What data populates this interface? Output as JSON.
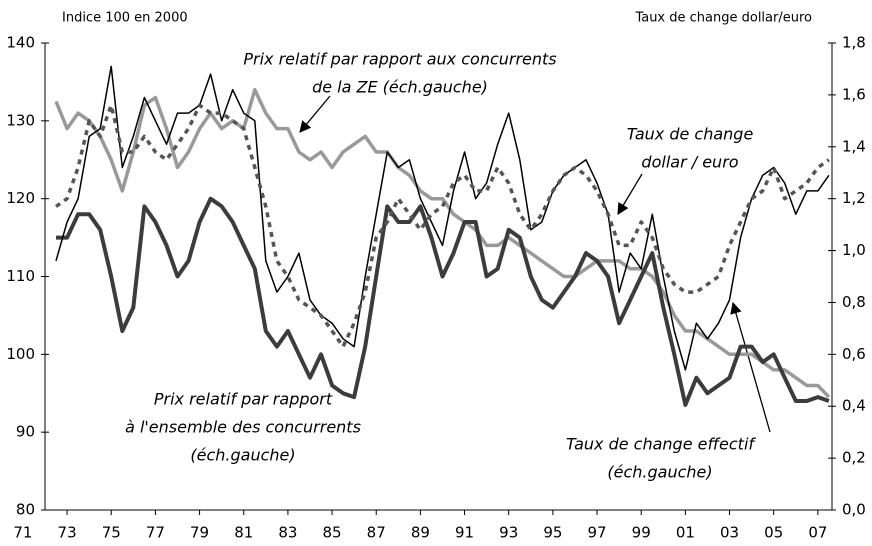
{
  "chart_data": {
    "type": "line",
    "axis_title_left": "Indice 100 en 2000",
    "axis_title_right": "Taux de change dollar/euro",
    "annotations": [
      [
        "Prix relatif par rapport aux concurrents",
        "de la ZE (éch.gauche)"
      ],
      [
        "Taux de change",
        "dollar / euro"
      ],
      [
        "Prix relatif par rapport",
        "à l'ensemble des concurrents",
        "(éch.gauche)"
      ],
      [
        "Taux de change effectif",
        "(éch.gauche)"
      ]
    ],
    "x": [
      1972.5,
      1973,
      1973.5,
      1974,
      1974.5,
      1975,
      1975.5,
      1976,
      1976.5,
      1977,
      1977.5,
      1978,
      1978.5,
      1979,
      1979.5,
      1980,
      1980.5,
      1981,
      1981.5,
      1982,
      1982.5,
      1983,
      1983.5,
      1984,
      1984.5,
      1985,
      1985.5,
      1986,
      1986.5,
      1987,
      1987.5,
      1988,
      1988.5,
      1989,
      1989.5,
      1990,
      1990.5,
      1991,
      1991.5,
      1992,
      1992.5,
      1993,
      1993.5,
      1994,
      1994.5,
      1995,
      1995.5,
      1996,
      1996.5,
      1997,
      1997.5,
      1998,
      1998.5,
      1999,
      1999.5,
      2000,
      2000.5,
      2001,
      2001.5,
      2002,
      2002.5,
      2003,
      2003.5,
      2004,
      2004.5,
      2005,
      2005.5,
      2006,
      2006.5,
      2007,
      2007.5
    ],
    "xlim": [
      1972,
      2007.64
    ],
    "xticks": [
      {
        "value": 1971,
        "label": "71"
      },
      {
        "value": 1973,
        "label": "73"
      },
      {
        "value": 1975,
        "label": "75"
      },
      {
        "value": 1977,
        "label": "77"
      },
      {
        "value": 1979,
        "label": "79"
      },
      {
        "value": 1981,
        "label": "81"
      },
      {
        "value": 1983,
        "label": "83"
      },
      {
        "value": 1985,
        "label": "85"
      },
      {
        "value": 1987,
        "label": "87"
      },
      {
        "value": 1989,
        "label": "89"
      },
      {
        "value": 1991,
        "label": "91"
      },
      {
        "value": 1993,
        "label": "93"
      },
      {
        "value": 1995,
        "label": "95"
      },
      {
        "value": 1997,
        "label": "97"
      },
      {
        "value": 1999,
        "label": "99"
      },
      {
        "value": 2001,
        "label": "01"
      },
      {
        "value": 2003,
        "label": "03"
      },
      {
        "value": 2005,
        "label": "05"
      },
      {
        "value": 2007,
        "label": "07"
      }
    ],
    "ylim": [
      80,
      140
    ],
    "yticks": [
      80,
      90,
      100,
      110,
      120,
      130,
      140
    ],
    "y2lim": [
      0,
      1.8
    ],
    "y2ticks": [
      {
        "value": 0,
        "label": "0,0"
      },
      {
        "value": 0.2,
        "label": "0,2"
      },
      {
        "value": 0.4,
        "label": "0,4"
      },
      {
        "value": 0.6,
        "label": "0,6"
      },
      {
        "value": 0.8,
        "label": "0,8"
      },
      {
        "value": 1.0,
        "label": "1,0"
      },
      {
        "value": 1.2,
        "label": "1,2"
      },
      {
        "value": 1.4,
        "label": "1,4"
      },
      {
        "value": 1.6,
        "label": "1,6"
      },
      {
        "value": 1.8,
        "label": "1,8"
      }
    ],
    "series": [
      {
        "color": "#999999",
        "width": 3.5,
        "dash": "none",
        "values": [
          132.5,
          129,
          131,
          130,
          128,
          125,
          121,
          126,
          132,
          133,
          129,
          124,
          126,
          129,
          131,
          129,
          130,
          129,
          134,
          131,
          129,
          129,
          126,
          125,
          126,
          124,
          126,
          127,
          128,
          126,
          126,
          124,
          123,
          121,
          120,
          120,
          118,
          117,
          116,
          114,
          114,
          115,
          114,
          113,
          112,
          111,
          110,
          110,
          111,
          112,
          112,
          112,
          111,
          111,
          110,
          108,
          105,
          103,
          103,
          102,
          101,
          100,
          100,
          100,
          99,
          98,
          98,
          97,
          96,
          96,
          94.5
        ]
      },
      {
        "color": "#3c3c3c",
        "width": 4,
        "dash": "none",
        "values": [
          115,
          115,
          118,
          118,
          116,
          110,
          103,
          106,
          119,
          117,
          114,
          110,
          112,
          117,
          120,
          119,
          117,
          114,
          111,
          103,
          101,
          103,
          100,
          97,
          100,
          96,
          95,
          94.5,
          101,
          110,
          119,
          117,
          117,
          119,
          115,
          110,
          113,
          117,
          117,
          110,
          111,
          116,
          115,
          110,
          107,
          106,
          108,
          110,
          113,
          112,
          110,
          104,
          107,
          110,
          113,
          106,
          100,
          93.5,
          97,
          95,
          96,
          97,
          101,
          101,
          99,
          100,
          97,
          94,
          94,
          94.5,
          94
        ]
      },
      {
        "color": "#000000",
        "width": 1.5,
        "dash": "none",
        "values": [
          112,
          117,
          120,
          128,
          129,
          137,
          124,
          128,
          133,
          130,
          127,
          131,
          131,
          132,
          136,
          130,
          134,
          131,
          130,
          112,
          108,
          110,
          113,
          107,
          105,
          104,
          102,
          101,
          110,
          118,
          126,
          124,
          125,
          120,
          117,
          114,
          121,
          126,
          120,
          122,
          127,
          131,
          125,
          116,
          117,
          121,
          123,
          124,
          125,
          122,
          118,
          108,
          113,
          111,
          118,
          110,
          103,
          98,
          104,
          102,
          104,
          107,
          115,
          120,
          123,
          124,
          122,
          118,
          121,
          121,
          123
        ]
      },
      {
        "color": "#555555",
        "width": 3.5,
        "dash": "5 5",
        "axis": "y2",
        "values": [
          1.17,
          1.2,
          1.32,
          1.5,
          1.44,
          1.56,
          1.38,
          1.38,
          1.44,
          1.38,
          1.35,
          1.41,
          1.47,
          1.56,
          1.53,
          1.53,
          1.5,
          1.47,
          1.32,
          1.17,
          0.96,
          0.9,
          0.81,
          0.78,
          0.75,
          0.69,
          0.63,
          0.72,
          0.84,
          1.05,
          1.11,
          1.2,
          1.14,
          1.08,
          1.14,
          1.17,
          1.26,
          1.29,
          1.23,
          1.23,
          1.32,
          1.26,
          1.14,
          1.08,
          1.14,
          1.23,
          1.29,
          1.32,
          1.29,
          1.23,
          1.14,
          1.02,
          1.02,
          1.11,
          1.05,
          0.93,
          0.87,
          0.84,
          0.84,
          0.87,
          0.9,
          1.02,
          1.11,
          1.2,
          1.23,
          1.32,
          1.2,
          1.23,
          1.26,
          1.32,
          1.35
        ]
      }
    ]
  }
}
